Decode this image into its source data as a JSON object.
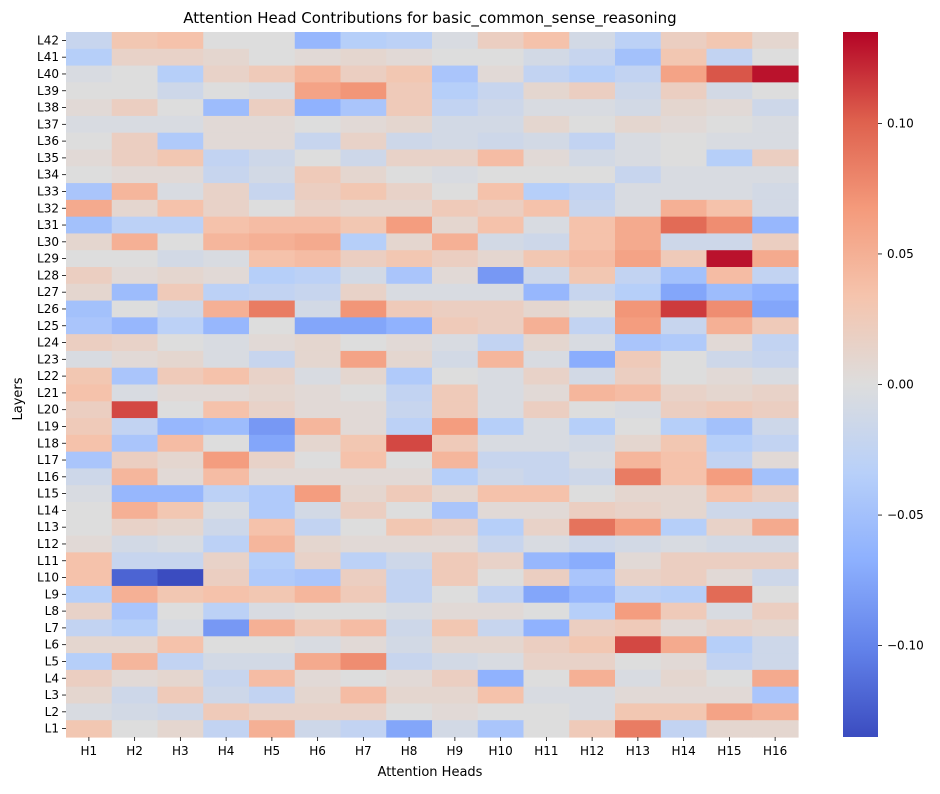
{
  "chart_data": {
    "type": "heatmap",
    "title": "Attention Head Contributions for basic_common_sense_reasoning",
    "xlabel": "Attention Heads",
    "ylabel": "Layers",
    "colormap": "coolwarm",
    "vmin": -0.135,
    "vmax": 0.135,
    "colorbar_ticks": [
      0.1,
      0.05,
      0.0,
      -0.05,
      -0.1
    ],
    "colorbar_tick_labels": [
      "0.10",
      "0.05",
      "0.00",
      "−0.05",
      "−0.10"
    ],
    "x_labels": [
      "H1",
      "H2",
      "H3",
      "H4",
      "H5",
      "H6",
      "H7",
      "H8",
      "H9",
      "H10",
      "H11",
      "H12",
      "H13",
      "H14",
      "H15",
      "H16"
    ],
    "y_labels": [
      "L42",
      "L41",
      "L40",
      "L39",
      "L38",
      "L37",
      "L36",
      "L35",
      "L34",
      "L33",
      "L32",
      "L31",
      "L30",
      "L29",
      "L28",
      "L27",
      "L26",
      "L25",
      "L24",
      "L23",
      "L22",
      "L21",
      "L20",
      "L19",
      "L18",
      "L17",
      "L16",
      "L15",
      "L14",
      "L13",
      "L12",
      "L11",
      "L10",
      "L9",
      "L8",
      "L7",
      "L6",
      "L5",
      "L4",
      "L3",
      "L2",
      "L1"
    ],
    "values": [
      [
        -0.02,
        0.03,
        0.035,
        0.0,
        0.0,
        -0.06,
        -0.035,
        -0.03,
        -0.005,
        0.02,
        0.035,
        -0.01,
        -0.03,
        0.02,
        0.03,
        0.01
      ],
      [
        -0.035,
        0.015,
        0.015,
        0.01,
        0.0,
        0.005,
        0.01,
        0.005,
        0.0,
        0.0,
        -0.01,
        -0.02,
        -0.05,
        0.03,
        -0.025,
        0.0
      ],
      [
        -0.005,
        0.0,
        -0.035,
        0.015,
        0.025,
        0.045,
        0.02,
        0.03,
        -0.045,
        0.005,
        -0.025,
        -0.035,
        -0.025,
        0.06,
        0.105,
        0.13
      ],
      [
        0.0,
        0.0,
        -0.015,
        0.0,
        -0.005,
        0.06,
        0.07,
        0.025,
        -0.035,
        -0.02,
        0.01,
        0.02,
        -0.015,
        0.02,
        -0.01,
        0.0
      ],
      [
        0.005,
        0.02,
        0.0,
        -0.055,
        0.02,
        -0.065,
        -0.045,
        0.025,
        -0.025,
        -0.015,
        -0.005,
        -0.005,
        -0.01,
        0.01,
        0.005,
        -0.015
      ],
      [
        -0.005,
        -0.005,
        -0.005,
        0.005,
        0.005,
        0.0,
        0.005,
        0.01,
        -0.01,
        -0.01,
        0.01,
        0.0,
        0.01,
        0.005,
        0.0,
        -0.005
      ],
      [
        0.0,
        0.02,
        -0.04,
        0.005,
        0.005,
        -0.02,
        0.015,
        -0.015,
        -0.01,
        -0.015,
        -0.01,
        -0.025,
        -0.005,
        0.0,
        -0.005,
        -0.005
      ],
      [
        0.005,
        0.02,
        0.03,
        -0.025,
        -0.015,
        0.0,
        -0.015,
        0.015,
        0.015,
        0.04,
        0.005,
        -0.01,
        -0.005,
        0.0,
        -0.035,
        0.02
      ],
      [
        0.0,
        0.005,
        0.005,
        -0.02,
        -0.01,
        0.025,
        0.01,
        0.0,
        -0.005,
        0.0,
        0.0,
        0.0,
        -0.02,
        -0.005,
        -0.005,
        -0.005
      ],
      [
        -0.045,
        0.045,
        -0.005,
        0.015,
        -0.02,
        0.02,
        0.03,
        0.015,
        0.0,
        0.035,
        -0.035,
        -0.025,
        -0.005,
        -0.005,
        -0.005,
        -0.01
      ],
      [
        0.055,
        0.01,
        0.035,
        0.015,
        0.0,
        0.015,
        0.01,
        0.01,
        0.025,
        0.02,
        0.035,
        -0.02,
        -0.005,
        0.05,
        0.035,
        -0.01
      ],
      [
        -0.05,
        -0.03,
        -0.03,
        0.035,
        0.04,
        0.04,
        0.03,
        0.065,
        0.01,
        0.035,
        -0.005,
        0.035,
        0.055,
        0.095,
        0.075,
        -0.06
      ],
      [
        0.01,
        0.05,
        0.0,
        0.045,
        0.05,
        0.055,
        -0.035,
        0.01,
        0.05,
        -0.01,
        -0.015,
        0.035,
        0.055,
        -0.015,
        -0.015,
        0.02
      ],
      [
        0.0,
        0.0,
        -0.01,
        -0.005,
        0.035,
        0.04,
        0.02,
        0.03,
        0.02,
        0.01,
        0.03,
        0.04,
        0.06,
        0.025,
        0.13,
        0.055
      ],
      [
        0.02,
        0.005,
        0.01,
        0.005,
        -0.035,
        -0.03,
        -0.01,
        -0.045,
        0.005,
        -0.085,
        -0.015,
        0.03,
        -0.025,
        -0.05,
        0.04,
        -0.025
      ],
      [
        0.01,
        -0.055,
        0.025,
        -0.03,
        -0.025,
        -0.02,
        0.015,
        -0.005,
        -0.005,
        -0.005,
        -0.06,
        -0.02,
        -0.035,
        -0.075,
        -0.055,
        -0.065
      ],
      [
        -0.05,
        0.0,
        -0.015,
        0.05,
        0.085,
        -0.01,
        0.07,
        0.025,
        0.02,
        0.02,
        0.01,
        0.0,
        0.07,
        0.115,
        0.075,
        -0.075
      ],
      [
        -0.045,
        -0.06,
        -0.03,
        -0.06,
        0.0,
        -0.075,
        -0.075,
        -0.065,
        0.025,
        0.02,
        0.05,
        -0.025,
        0.065,
        -0.02,
        0.05,
        0.025
      ],
      [
        0.02,
        0.015,
        0.0,
        -0.005,
        0.005,
        0.01,
        0.0,
        0.005,
        -0.005,
        -0.025,
        0.01,
        -0.005,
        -0.045,
        -0.04,
        0.005,
        -0.025
      ],
      [
        -0.005,
        0.005,
        0.01,
        -0.005,
        -0.02,
        0.01,
        0.06,
        0.01,
        -0.01,
        0.045,
        -0.005,
        -0.07,
        0.025,
        0.0,
        -0.015,
        -0.02
      ],
      [
        0.03,
        -0.045,
        0.025,
        0.035,
        0.015,
        -0.005,
        0.01,
        -0.04,
        0.0,
        -0.005,
        0.015,
        -0.01,
        0.02,
        0.0,
        0.005,
        -0.005
      ],
      [
        0.035,
        -0.005,
        0.005,
        0.005,
        0.01,
        0.005,
        0.0,
        -0.025,
        0.025,
        -0.005,
        0.005,
        0.045,
        0.04,
        0.015,
        0.01,
        0.015
      ],
      [
        0.02,
        0.11,
        0.0,
        0.035,
        0.015,
        0.005,
        0.005,
        -0.02,
        0.025,
        -0.005,
        0.02,
        0.0,
        -0.005,
        0.02,
        0.025,
        0.02
      ],
      [
        0.025,
        -0.025,
        -0.06,
        -0.055,
        -0.085,
        0.045,
        0.005,
        -0.03,
        0.065,
        -0.035,
        -0.005,
        -0.035,
        0.0,
        -0.035,
        -0.05,
        -0.015
      ],
      [
        0.035,
        -0.045,
        0.04,
        0.0,
        -0.075,
        0.01,
        0.03,
        0.11,
        0.025,
        -0.005,
        -0.005,
        -0.01,
        0.01,
        0.03,
        -0.035,
        -0.025
      ],
      [
        -0.045,
        0.02,
        0.01,
        0.065,
        0.015,
        0.0,
        0.035,
        0.0,
        0.045,
        -0.02,
        -0.02,
        -0.005,
        0.045,
        0.035,
        -0.025,
        0.005
      ],
      [
        -0.015,
        0.045,
        0.005,
        0.04,
        0.005,
        0.005,
        0.005,
        0.005,
        -0.035,
        -0.015,
        -0.02,
        -0.015,
        0.085,
        0.035,
        0.065,
        -0.05
      ],
      [
        -0.005,
        -0.06,
        -0.06,
        -0.03,
        -0.04,
        0.065,
        0.01,
        0.025,
        0.01,
        0.035,
        0.035,
        0.0,
        0.01,
        0.01,
        0.035,
        0.02
      ],
      [
        0.0,
        0.05,
        0.03,
        -0.005,
        -0.04,
        -0.01,
        0.02,
        0.0,
        -0.045,
        0.005,
        0.005,
        0.02,
        0.015,
        0.01,
        -0.015,
        -0.015
      ],
      [
        0.0,
        0.015,
        0.01,
        -0.015,
        0.035,
        -0.025,
        0.0,
        0.03,
        0.02,
        -0.035,
        0.015,
        0.09,
        0.065,
        -0.035,
        0.015,
        0.055
      ],
      [
        0.005,
        -0.01,
        -0.005,
        -0.03,
        0.045,
        0.01,
        0.005,
        0.005,
        0.005,
        -0.02,
        -0.005,
        -0.015,
        -0.01,
        -0.005,
        -0.01,
        -0.01
      ],
      [
        0.035,
        -0.02,
        -0.02,
        0.015,
        -0.035,
        0.015,
        -0.03,
        -0.015,
        0.025,
        0.015,
        -0.06,
        -0.07,
        0.005,
        0.02,
        0.02,
        0.02
      ],
      [
        0.035,
        -0.12,
        -0.135,
        0.02,
        -0.04,
        -0.045,
        0.02,
        -0.025,
        0.025,
        0.0,
        0.02,
        -0.045,
        0.015,
        0.02,
        0.005,
        -0.015
      ],
      [
        -0.035,
        0.05,
        0.03,
        0.035,
        0.03,
        0.045,
        0.025,
        -0.025,
        0.0,
        -0.025,
        -0.075,
        -0.06,
        -0.03,
        -0.035,
        0.095,
        0.0
      ],
      [
        0.015,
        -0.045,
        0.0,
        -0.03,
        -0.005,
        0.0,
        0.0,
        -0.005,
        0.005,
        0.005,
        0.0,
        -0.035,
        0.065,
        0.025,
        -0.005,
        0.02
      ],
      [
        -0.025,
        -0.035,
        -0.005,
        -0.085,
        0.05,
        0.025,
        0.04,
        -0.015,
        0.03,
        -0.02,
        -0.065,
        0.02,
        0.025,
        0.005,
        0.015,
        0.01
      ],
      [
        0.01,
        0.01,
        0.035,
        0.0,
        0.0,
        -0.005,
        0.005,
        -0.01,
        0.01,
        0.01,
        0.02,
        0.03,
        0.11,
        0.055,
        -0.035,
        -0.015
      ],
      [
        -0.035,
        0.045,
        -0.025,
        -0.01,
        -0.01,
        0.055,
        0.075,
        -0.02,
        -0.01,
        -0.005,
        0.015,
        0.015,
        0.0,
        0.005,
        -0.025,
        -0.015
      ],
      [
        0.02,
        0.005,
        0.01,
        -0.02,
        0.04,
        0.005,
        0.0,
        0.005,
        0.02,
        -0.065,
        0.0,
        0.05,
        -0.005,
        0.01,
        0.0,
        0.055
      ],
      [
        0.01,
        -0.015,
        0.025,
        -0.015,
        -0.025,
        0.01,
        0.04,
        0.01,
        0.01,
        0.035,
        -0.005,
        -0.005,
        0.005,
        0.005,
        0.005,
        -0.045
      ],
      [
        -0.005,
        -0.01,
        -0.015,
        0.025,
        0.015,
        0.015,
        0.015,
        0.0,
        0.005,
        0.0,
        0.0,
        -0.005,
        0.03,
        0.03,
        0.06,
        0.05
      ],
      [
        0.03,
        0.0,
        0.01,
        -0.025,
        0.05,
        -0.015,
        -0.025,
        -0.075,
        -0.01,
        -0.045,
        0.0,
        0.025,
        0.085,
        -0.025,
        0.01,
        0.01
      ]
    ]
  }
}
